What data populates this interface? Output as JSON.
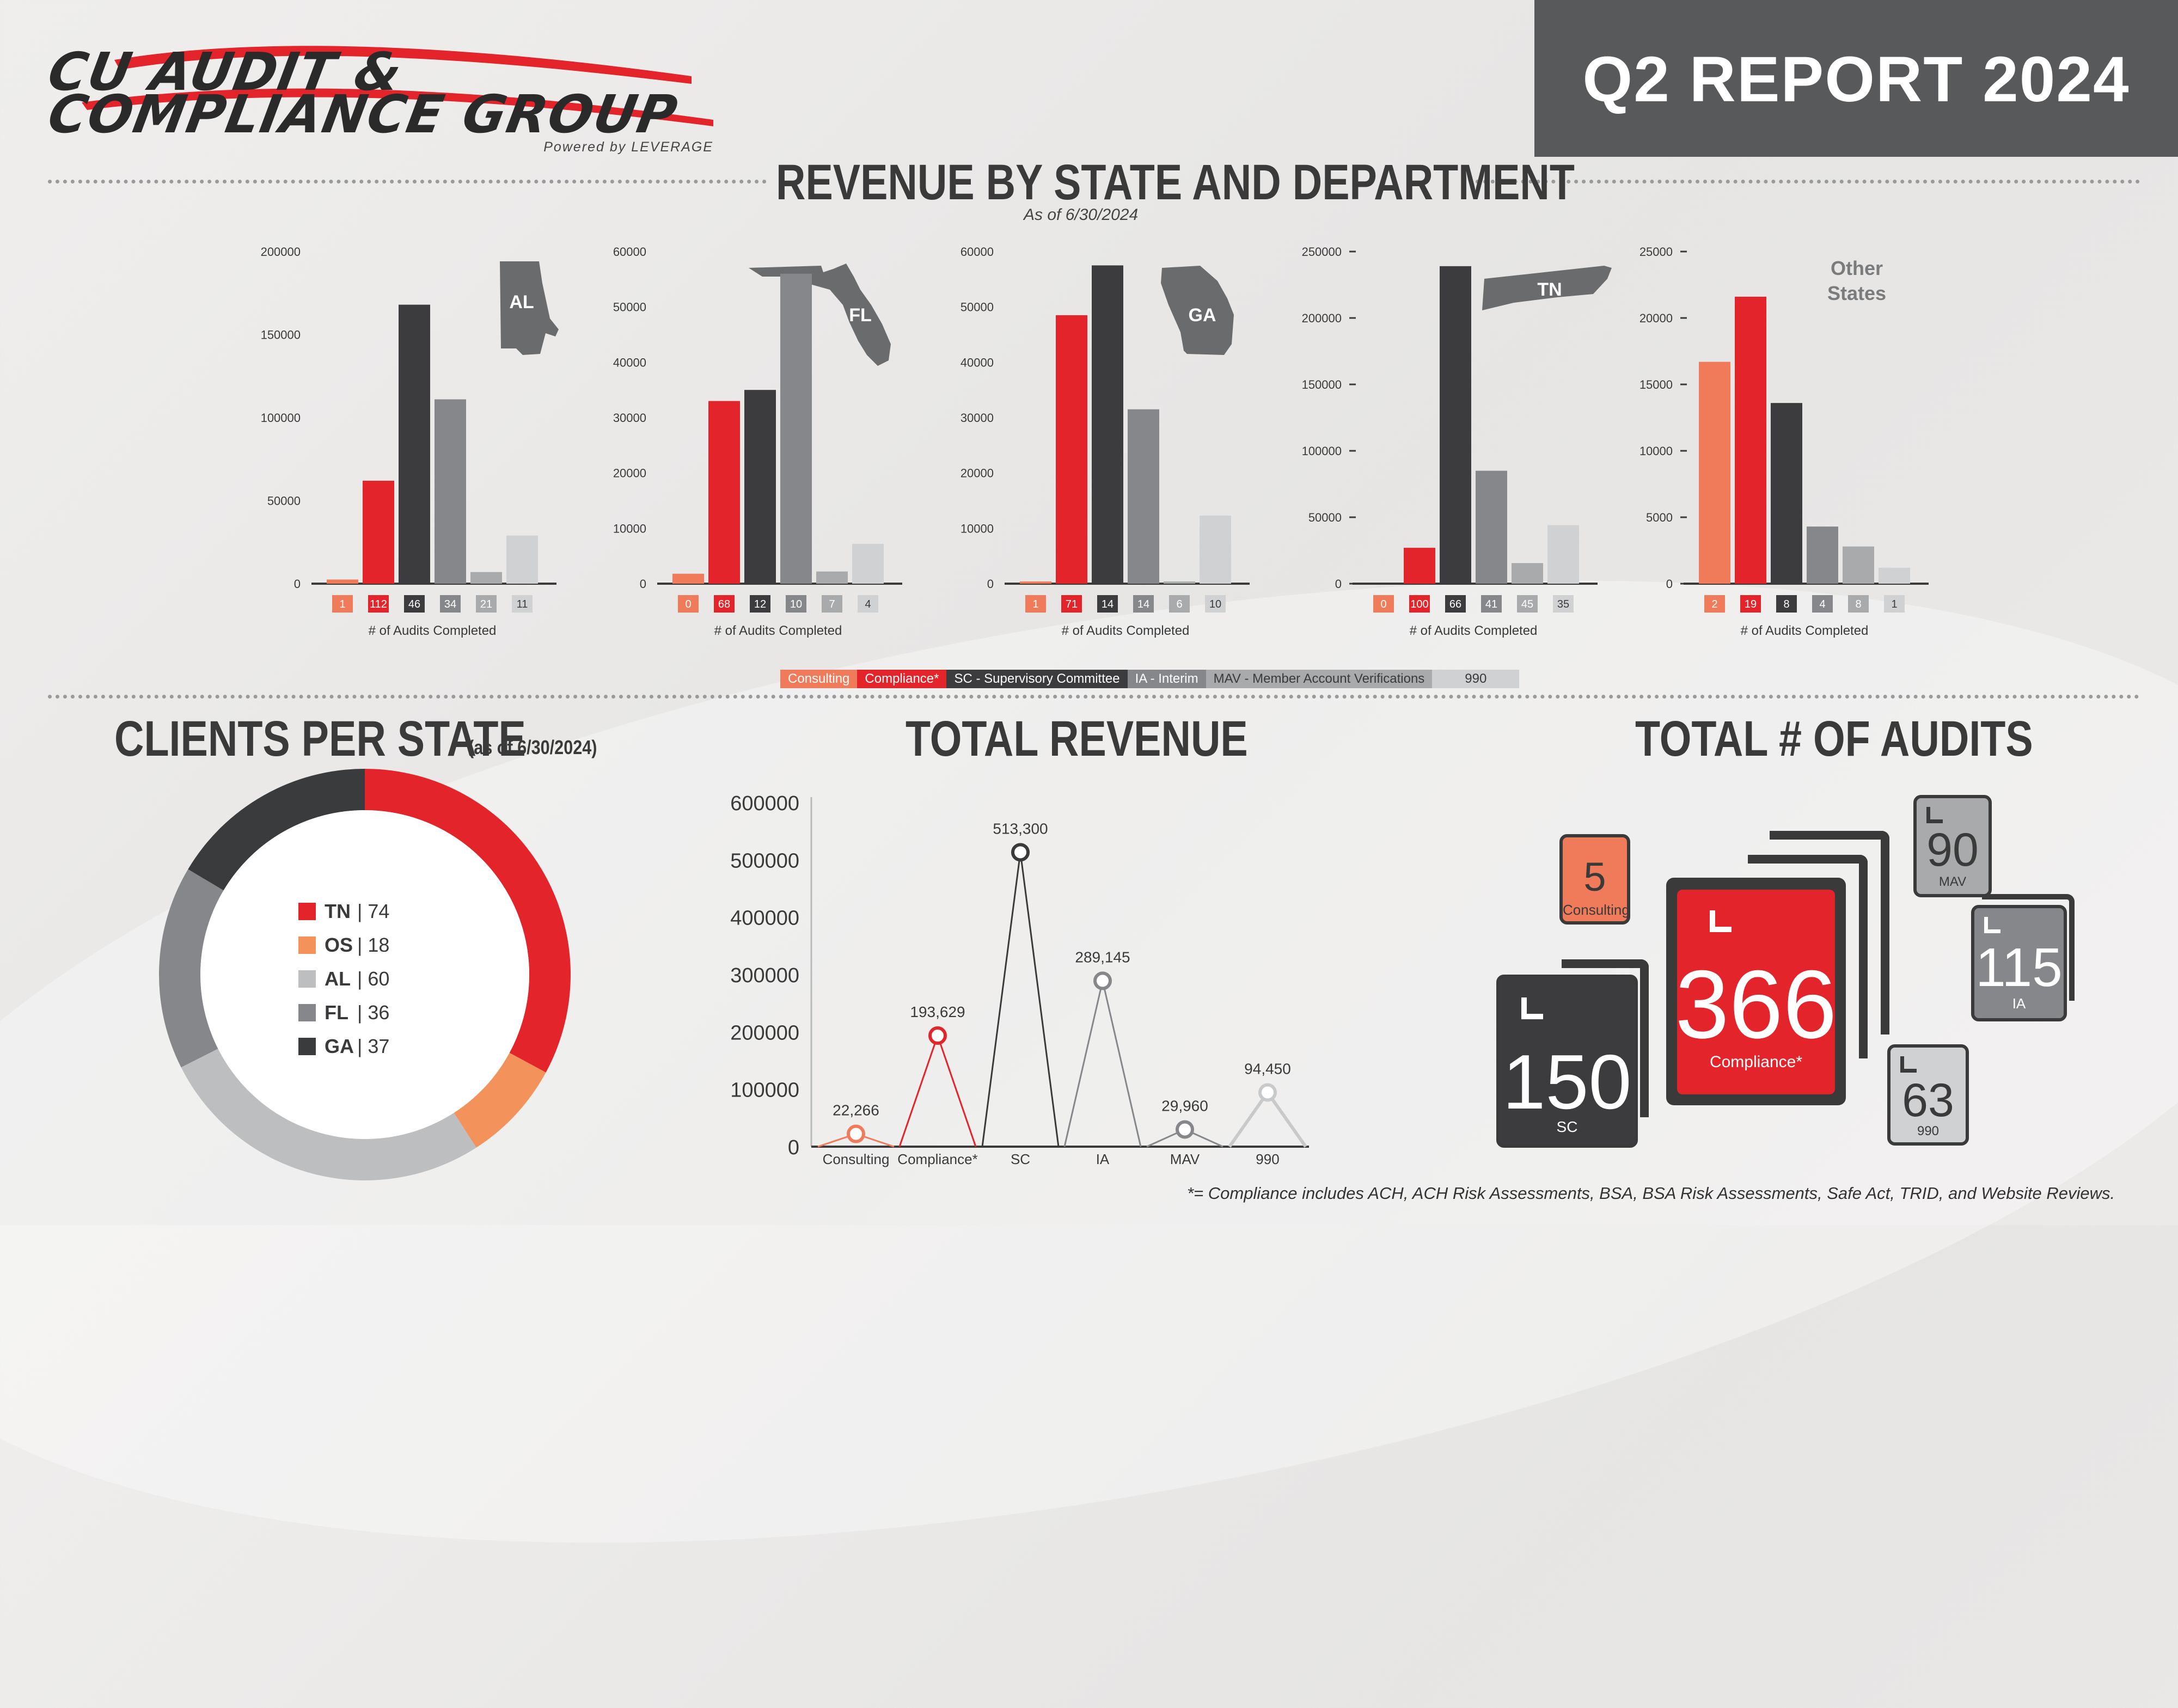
{
  "logo": {
    "line1": "CU AUDIT &",
    "line2": "COMPLIANCE GROUP",
    "powered": "Powered by LEVERAGE"
  },
  "header": {
    "title": "Q2 REPORT 2024"
  },
  "revenue_section": {
    "title": "REVENUE BY STATE AND DEPARTMENT",
    "subtitle": "As of 6/30/2024",
    "xlabel": "# of Audits Completed"
  },
  "colors": {
    "consulting": "#ef7b5b",
    "compliance": "#e3242b",
    "sc": "#3c3c3e",
    "ia": "#86878a",
    "mav": "#a9aaac",
    "n990": "#d0d1d3"
  },
  "legend": [
    {
      "key": "consulting",
      "label": "Consulting"
    },
    {
      "key": "compliance",
      "label": "Compliance*"
    },
    {
      "key": "sc",
      "label": "SC - Supervisory Committee"
    },
    {
      "key": "ia",
      "label": "IA - Interim"
    },
    {
      "key": "mav",
      "label": "MAV - Member Account Verifications"
    },
    {
      "key": "n990",
      "label": "990"
    }
  ],
  "clients_section": {
    "title": "CLIENTS PER STATE",
    "subtitle": "(as of 6/30/2024)"
  },
  "total_revenue_section": {
    "title": "TOTAL REVENUE"
  },
  "total_audits_section": {
    "title": "TOTAL # OF AUDITS"
  },
  "total_audits": {
    "consulting": {
      "value": "5",
      "label": "Consulting"
    },
    "compliance": {
      "value": "366",
      "label": "Compliance*"
    },
    "sc": {
      "value": "150",
      "label": "SC"
    },
    "ia": {
      "value": "115",
      "label": "IA"
    },
    "mav": {
      "value": "90",
      "label": "MAV"
    },
    "n990": {
      "value": "63",
      "label": "990"
    }
  },
  "footnote": "*= Compliance includes ACH, ACH Risk Assessments, BSA, BSA Risk Assessments, Safe Act, TRID, and Website Reviews.",
  "chart_data": [
    {
      "type": "bar",
      "title": "AL",
      "xlabel": "# of Audits Completed",
      "ylim": [
        0,
        200000
      ],
      "yticks": [
        0,
        50000,
        100000,
        150000,
        200000
      ],
      "categories": [
        "Consulting",
        "Compliance*",
        "SC",
        "IA",
        "MAV",
        "990"
      ],
      "values": [
        2500,
        62000,
        168000,
        111000,
        7000,
        29000
      ],
      "audit_counts": [
        "1",
        "112",
        "46",
        "34",
        "21",
        "11"
      ]
    },
    {
      "type": "bar",
      "title": "FL",
      "xlabel": "# of Audits Completed",
      "ylim": [
        0,
        60000
      ],
      "yticks": [
        0,
        10000,
        20000,
        30000,
        40000,
        50000,
        60000
      ],
      "categories": [
        "Consulting",
        "Compliance*",
        "SC",
        "IA",
        "MAV",
        "990"
      ],
      "values": [
        1800,
        33000,
        35000,
        56000,
        2200,
        7200
      ],
      "audit_counts": [
        "0",
        "68",
        "12",
        "10",
        "7",
        "4"
      ]
    },
    {
      "type": "bar",
      "title": "GA",
      "xlabel": "# of Audits Completed",
      "ylim": [
        0,
        60000
      ],
      "yticks": [
        0,
        10000,
        20000,
        30000,
        40000,
        50000,
        60000
      ],
      "categories": [
        "Consulting",
        "Compliance*",
        "SC",
        "IA",
        "MAV",
        "990"
      ],
      "values": [
        400,
        48500,
        57500,
        31500,
        400,
        12300
      ],
      "audit_counts": [
        "1",
        "71",
        "14",
        "14",
        "6",
        "10"
      ]
    },
    {
      "type": "bar",
      "title": "TN",
      "xlabel": "# of Audits Completed",
      "ylim": [
        0,
        250000
      ],
      "yticks": [
        0,
        50000,
        100000,
        150000,
        200000,
        250000
      ],
      "categories": [
        "Consulting",
        "Compliance*",
        "SC",
        "IA",
        "MAV",
        "990"
      ],
      "values": [
        0,
        27000,
        239000,
        85000,
        15500,
        44000
      ],
      "audit_counts": [
        "0",
        "100",
        "66",
        "41",
        "45",
        "35"
      ]
    },
    {
      "type": "bar",
      "title": "Other States",
      "xlabel": "# of Audits Completed",
      "ylim": [
        0,
        25000
      ],
      "yticks": [
        0,
        5000,
        10000,
        15000,
        20000,
        25000
      ],
      "categories": [
        "Consulting",
        "Compliance*",
        "SC",
        "IA",
        "MAV",
        "990"
      ],
      "values": [
        16700,
        21600,
        13600,
        4300,
        2800,
        1200
      ],
      "audit_counts": [
        "2",
        "19",
        "8",
        "4",
        "8",
        "1"
      ]
    },
    {
      "type": "pie",
      "title": "CLIENTS PER STATE",
      "categories": [
        "TN",
        "OS",
        "AL",
        "FL",
        "GA"
      ],
      "values": [
        74,
        18,
        60,
        36,
        37
      ]
    },
    {
      "type": "line",
      "title": "TOTAL REVENUE",
      "ylim": [
        0,
        600000
      ],
      "yticks": [
        0,
        100000,
        200000,
        300000,
        400000,
        500000,
        600000
      ],
      "categories": [
        "Consulting",
        "Compliance*",
        "SC",
        "IA",
        "MAV",
        "990"
      ],
      "values": [
        22266,
        193629,
        513300,
        289145,
        29960,
        94450
      ],
      "labels": [
        "22,266",
        "193,629",
        "513,300",
        "289,145",
        "29,960",
        "94,450"
      ]
    }
  ]
}
